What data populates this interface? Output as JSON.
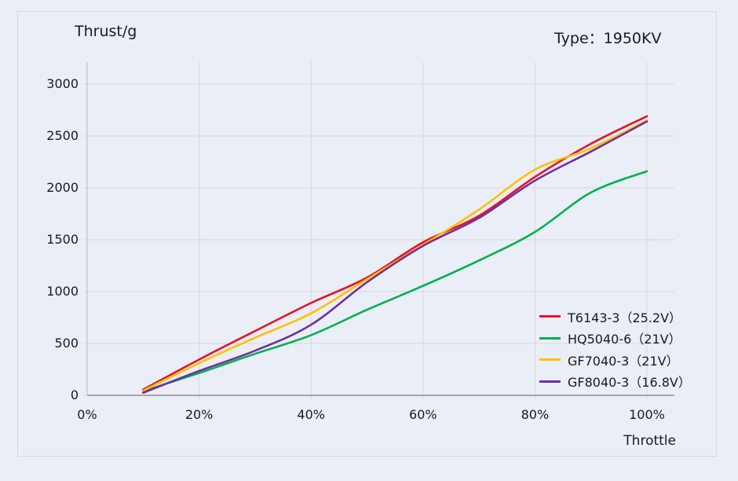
{
  "header": {
    "title": "Thrust/g",
    "type_label": "Type：1950KV"
  },
  "axis": {
    "x_label": "Throttle"
  },
  "colors": {
    "background": "#eaeef7",
    "chart_border": "#d8d8d8",
    "gridline": "#d8d8d8",
    "x_axis": "#8f8f8f",
    "y_axis": "#c2c2c2",
    "text": "#1a1a1a"
  },
  "chart_data": {
    "type": "line",
    "title": "Thrust/g",
    "xlabel": "Throttle",
    "ylabel": "Thrust/g",
    "annotation": "Type：1950KV",
    "x": [
      10,
      20,
      30,
      40,
      50,
      60,
      70,
      80,
      90,
      100
    ],
    "x_unit": "%",
    "x_tick_labels": [
      "0%",
      "20%",
      "40%",
      "60%",
      "80%",
      "100%"
    ],
    "x_tick_values": [
      0,
      20,
      40,
      60,
      80,
      100
    ],
    "y_tick_labels": [
      "0",
      "500",
      "1000",
      "1500",
      "2000",
      "2500",
      "3000"
    ],
    "y_tick_values": [
      0,
      500,
      1000,
      1500,
      2000,
      2500,
      3000
    ],
    "xlim": [
      0,
      105
    ],
    "ylim": [
      0,
      3212
    ],
    "grid": true,
    "legend_position": "inside-bottom-right",
    "series": [
      {
        "name": "T6143-3（25.2V）",
        "color": "#e8112d",
        "values": [
          55,
          345,
          620,
          890,
          1135,
          1475,
          1730,
          2105,
          2425,
          2690
        ]
      },
      {
        "name": "HQ5040-6（21V）",
        "color": "#00b050",
        "values": [
          40,
          215,
          400,
          580,
          825,
          1055,
          1300,
          1575,
          1955,
          2160
        ]
      },
      {
        "name": "GF7040-3（21V）",
        "color": "#ffc000",
        "values": [
          45,
          310,
          555,
          790,
          1120,
          1450,
          1790,
          2175,
          2380,
          2650
        ]
      },
      {
        "name": "GF8040-3（16.8V）",
        "color": "#7030a0",
        "values": [
          25,
          235,
          430,
          680,
          1090,
          1440,
          1710,
          2070,
          2350,
          2640
        ]
      }
    ]
  }
}
